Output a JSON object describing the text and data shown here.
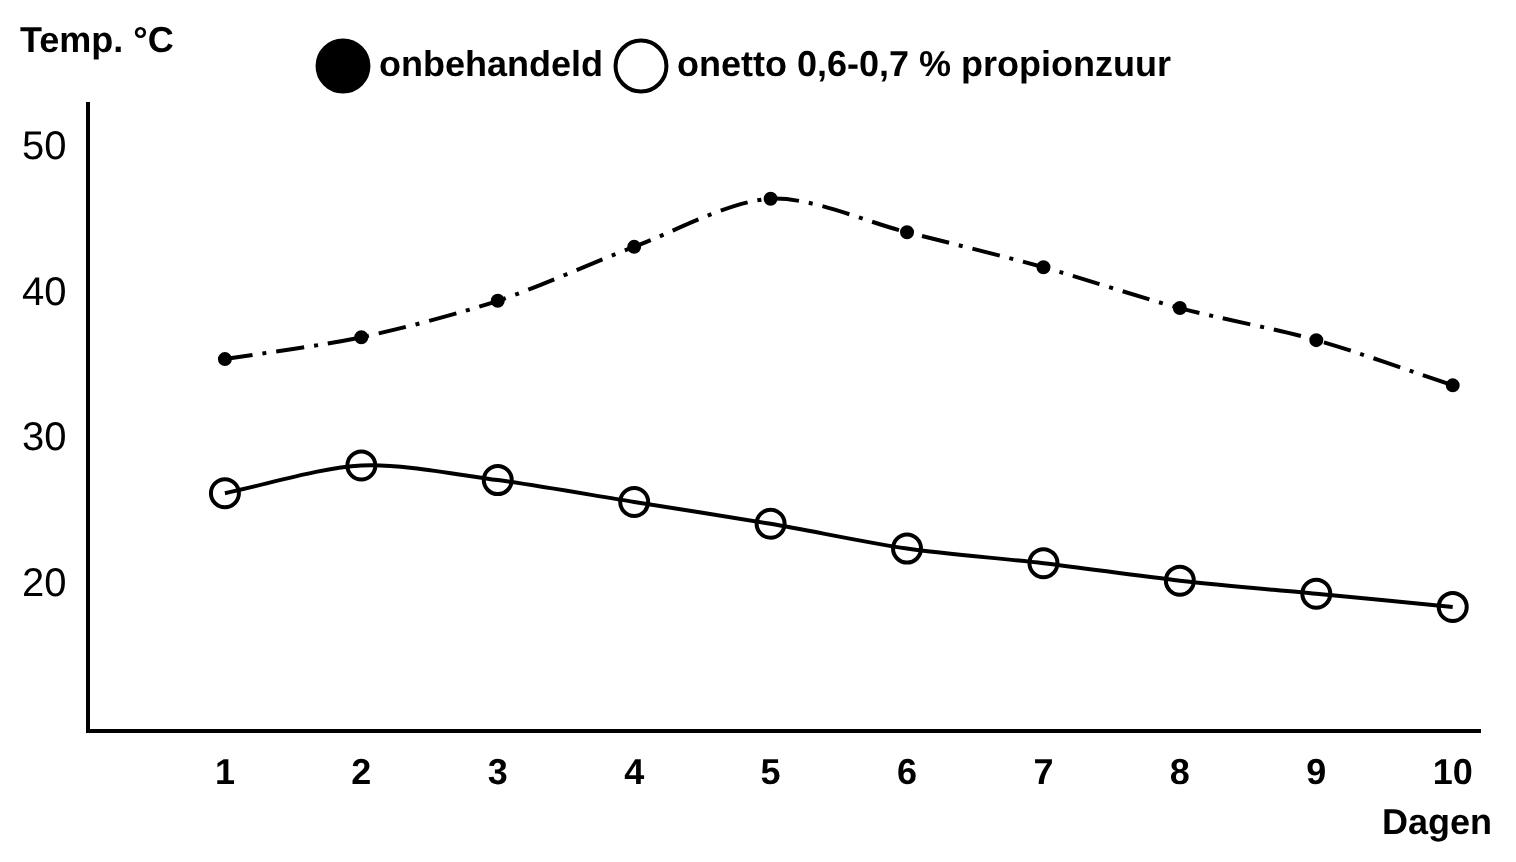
{
  "chart_data": {
    "type": "line",
    "ylabel": "Temp. °C",
    "xlabel": "Dagen",
    "x": [
      1,
      2,
      3,
      4,
      5,
      6,
      7,
      8,
      9,
      10
    ],
    "series": [
      {
        "name": "onbehandeld",
        "color": "#000000",
        "marker": "circle",
        "line_style": "dashed",
        "values": [
          35.5,
          37,
          39.5,
          43.2,
          46.5,
          44.2,
          41.8,
          39,
          36.8,
          33.7
        ]
      },
      {
        "name": "onetto 0,6-0,7 % propionzuur",
        "color": "#000000",
        "marker": "circle",
        "line_style": "solid",
        "values": [
          26.3,
          28.2,
          27.2,
          25.7,
          24.2,
          22.5,
          21.5,
          20.3,
          19.4,
          18.5
        ]
      }
    ],
    "xlim": [
      0,
      10.2
    ],
    "xticks": [
      1,
      2,
      3,
      4,
      5,
      6,
      7,
      8,
      9,
      10
    ],
    "ylim": [
      10,
      53
    ],
    "yticks": [
      20,
      30,
      40,
      50
    ],
    "grid": false,
    "legend": "top"
  }
}
